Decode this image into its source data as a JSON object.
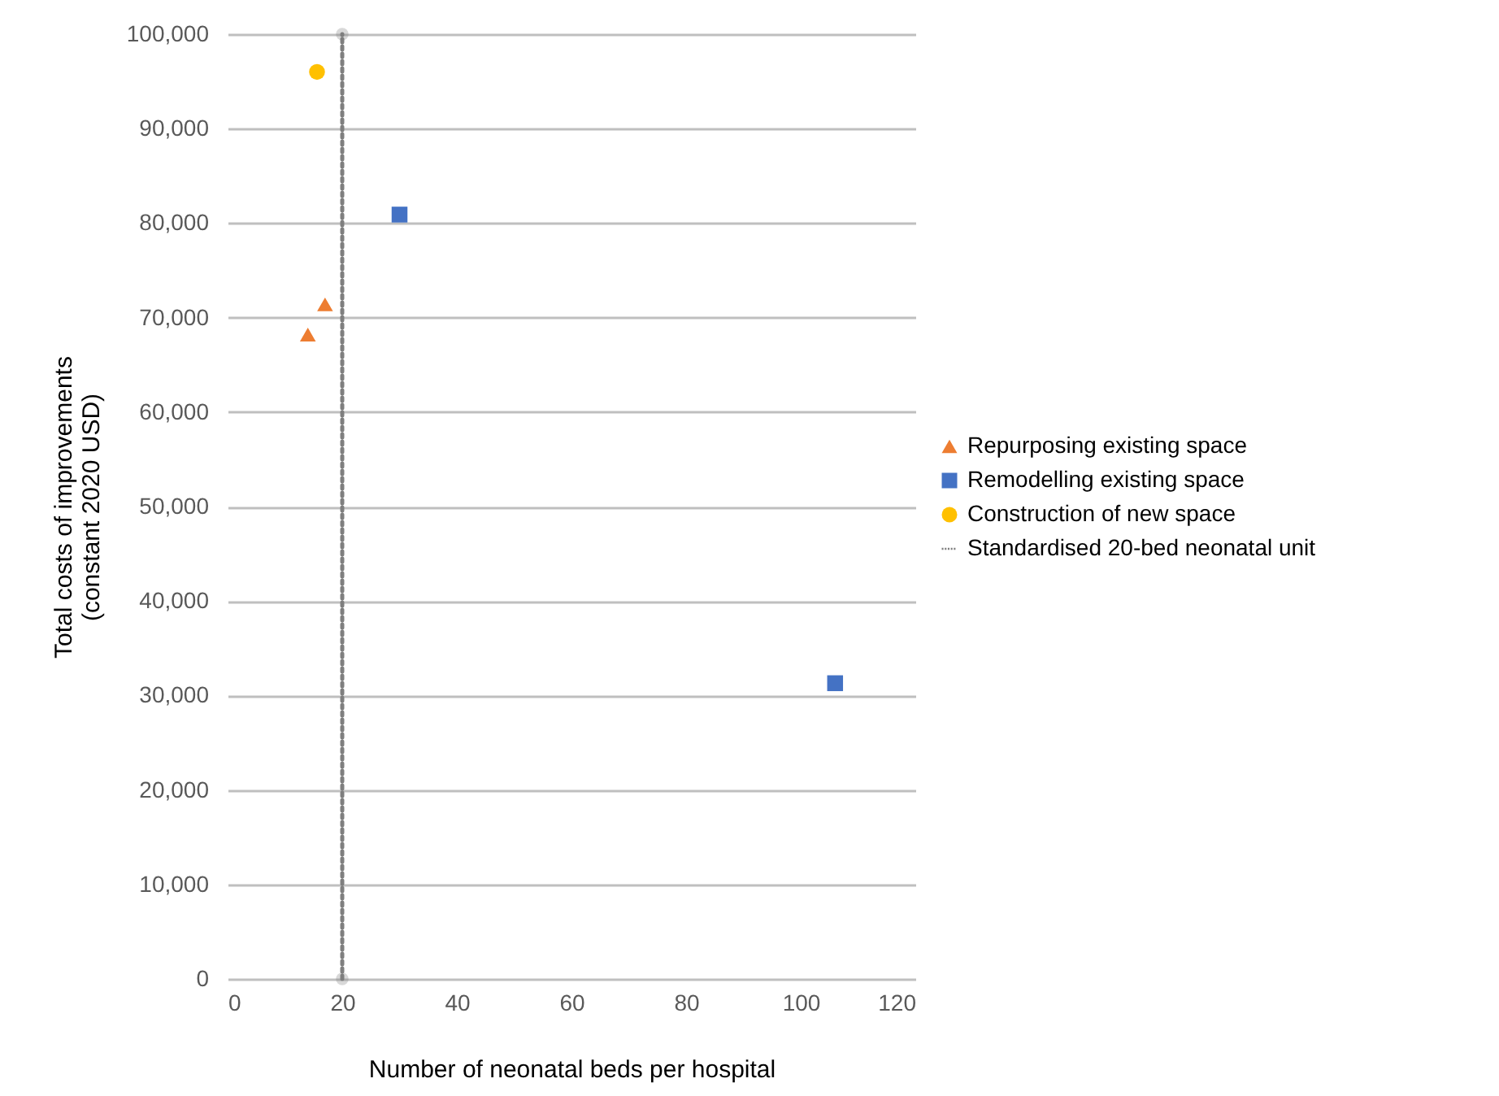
{
  "chart_data": {
    "type": "scatter",
    "xlabel": "Number of neonatal beds per hospital",
    "ylabel": "Total costs of improvements\n(constant 2020 USD)",
    "xlim": [
      0,
      120
    ],
    "xticks": [
      0,
      20,
      40,
      60,
      80,
      100,
      120
    ],
    "ylim": [
      0,
      100000
    ],
    "yticks": [
      0,
      {
        "value": 10000,
        "label": "10,000"
      },
      {
        "value": 20000,
        "label": "20,000"
      },
      {
        "value": 30000,
        "label": "30,000"
      },
      {
        "value": 40000,
        "label": "40,000"
      },
      {
        "value": 50000,
        "label": "50,000"
      },
      {
        "value": 60000,
        "label": "60,000"
      },
      {
        "value": 70000,
        "label": "70,000"
      },
      {
        "value": 80000,
        "label": "80,000"
      },
      {
        "value": 90000,
        "label": "90,000"
      },
      {
        "value": 100000,
        "label": "100,000"
      }
    ],
    "grid": "y",
    "legend": "right",
    "series": [
      {
        "name": "Repurposing existing space",
        "color": "#ed7d31",
        "marker": "triangle",
        "x": [
          14,
          17
        ],
        "values": [
          68200,
          71400
        ]
      },
      {
        "name": "Remodelling existing space",
        "color": "#4472c4",
        "marker": "square",
        "x": [
          30,
          106
        ],
        "values": [
          80900,
          31300
        ]
      },
      {
        "name": "Construction of new space",
        "color": "#ffc000",
        "marker": "circle",
        "x": [
          15.6
        ],
        "values": [
          96000
        ]
      },
      {
        "name": "Standardised 20-bed neonatal unit",
        "color": "#7f7f7f",
        "type": "line",
        "marker": "circle",
        "line_style": "dotted",
        "x": [
          20,
          20
        ],
        "values": [
          0,
          100000
        ]
      }
    ]
  }
}
